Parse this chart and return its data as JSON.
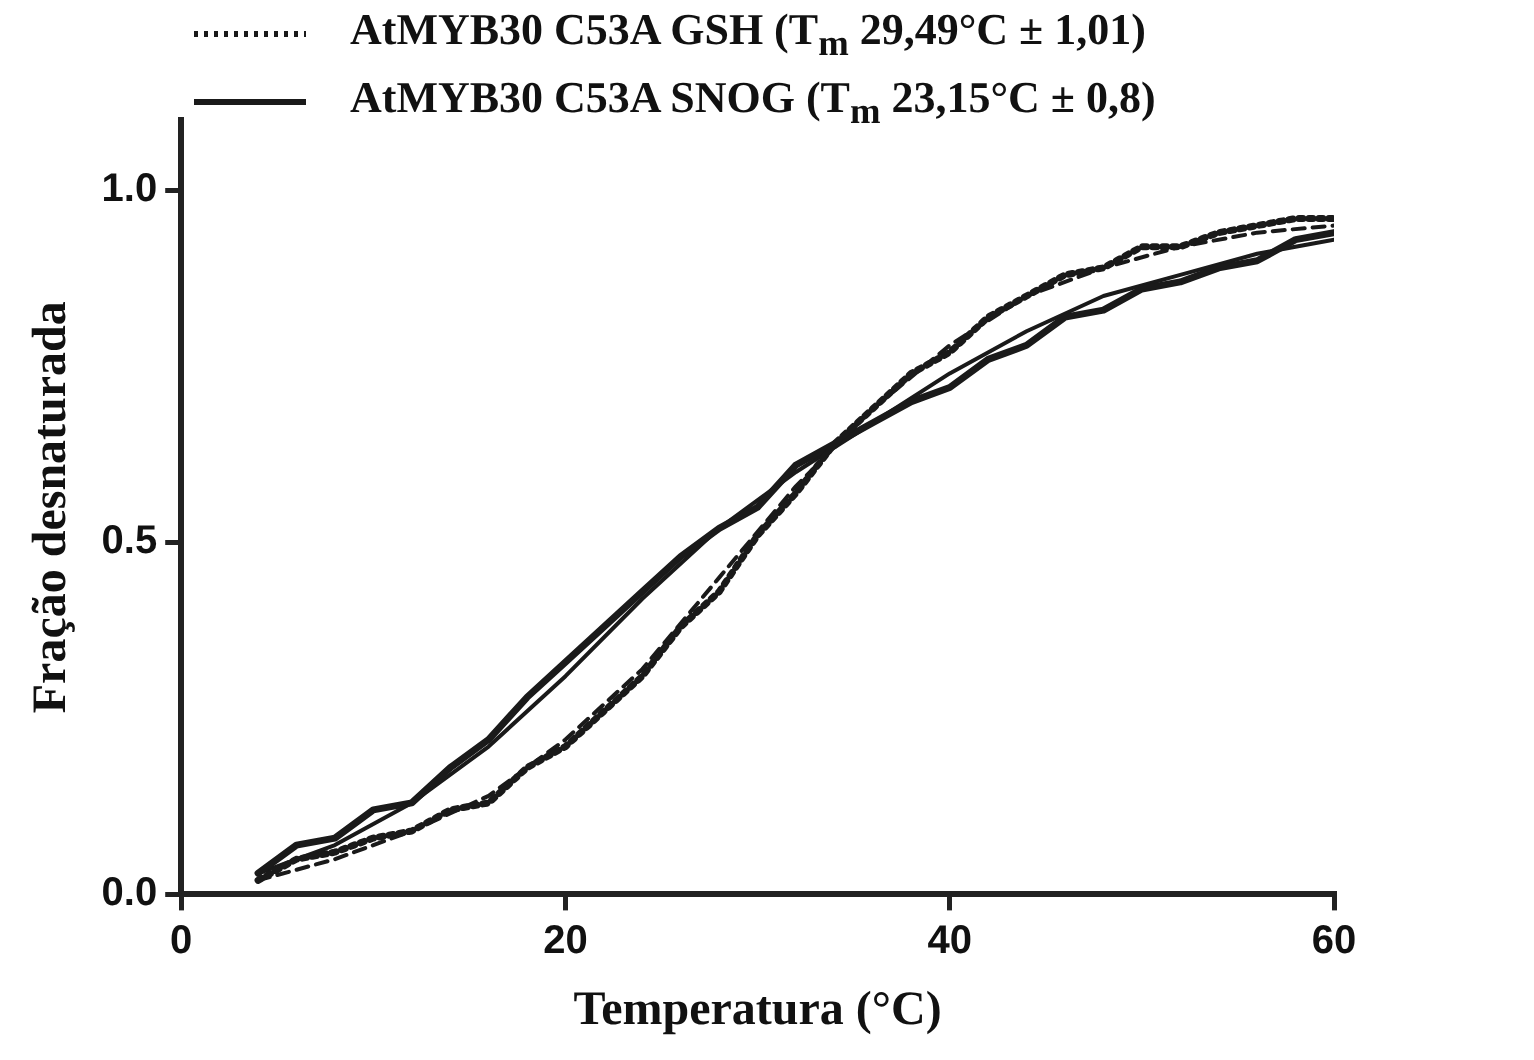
{
  "chart_data": {
    "type": "line",
    "xlabel": "Temperatura (°C)",
    "ylabel": "Fração desnaturada",
    "xlim": [
      0,
      60
    ],
    "xticks": [
      0,
      20,
      40,
      60
    ],
    "ylim": [
      0,
      1.1
    ],
    "yticks": [
      {
        "value": 0,
        "label": "0.0"
      },
      {
        "value": 0.5,
        "label": "0.5"
      },
      {
        "value": 1,
        "label": "1.0"
      }
    ],
    "grid": false,
    "legend": "top",
    "marker": "none",
    "series": [
      {
        "name": "AtMYB30 C53A GSH (T$_{m}$ 29,49°C ± 1,01)",
        "color": "#1a1a1a",
        "line_style": "dotted",
        "x": [
          4,
          6,
          8,
          10,
          12,
          14,
          16,
          18,
          20,
          22,
          24,
          26,
          28,
          30,
          32,
          34,
          36,
          38,
          40,
          42,
          44,
          46,
          48,
          50,
          52,
          54,
          56,
          58,
          60
        ],
        "values": [
          0.02,
          0.05,
          0.06,
          0.08,
          0.09,
          0.12,
          0.13,
          0.18,
          0.21,
          0.26,
          0.31,
          0.38,
          0.43,
          0.51,
          0.57,
          0.64,
          0.69,
          0.74,
          0.77,
          0.82,
          0.85,
          0.88,
          0.89,
          0.92,
          0.92,
          0.94,
          0.95,
          0.96,
          0.96
        ]
      },
      {
        "name": "AtMYB30 C53A SNOG (T$_{m}$ 23,15°C ± 0,8)",
        "color": "#1a1a1a",
        "line_style": "solid",
        "x": [
          4,
          6,
          8,
          10,
          12,
          14,
          16,
          18,
          20,
          22,
          24,
          26,
          28,
          30,
          32,
          34,
          36,
          38,
          40,
          42,
          44,
          46,
          48,
          50,
          52,
          54,
          56,
          58,
          60
        ],
        "values": [
          0.03,
          0.07,
          0.08,
          0.12,
          0.13,
          0.18,
          0.22,
          0.28,
          0.33,
          0.38,
          0.43,
          0.48,
          0.52,
          0.55,
          0.61,
          0.64,
          0.67,
          0.7,
          0.72,
          0.76,
          0.78,
          0.82,
          0.83,
          0.86,
          0.87,
          0.89,
          0.9,
          0.93,
          0.94
        ]
      },
      {
        "color": "#1a1a1a",
        "line_style": "dashed",
        "x": [
          4,
          8,
          12,
          16,
          20,
          24,
          28,
          32,
          36,
          40,
          44,
          48,
          52,
          56,
          60
        ],
        "values": [
          0.02,
          0.05,
          0.09,
          0.14,
          0.22,
          0.32,
          0.45,
          0.58,
          0.69,
          0.78,
          0.85,
          0.89,
          0.92,
          0.94,
          0.95
        ]
      },
      {
        "color": "#1a1a1a",
        "line_style": "solid",
        "x": [
          4,
          8,
          12,
          16,
          20,
          24,
          28,
          32,
          36,
          40,
          44,
          48,
          52,
          56,
          60
        ],
        "values": [
          0.03,
          0.07,
          0.13,
          0.21,
          0.31,
          0.42,
          0.52,
          0.6,
          0.67,
          0.74,
          0.8,
          0.85,
          0.88,
          0.91,
          0.93
        ]
      }
    ]
  }
}
